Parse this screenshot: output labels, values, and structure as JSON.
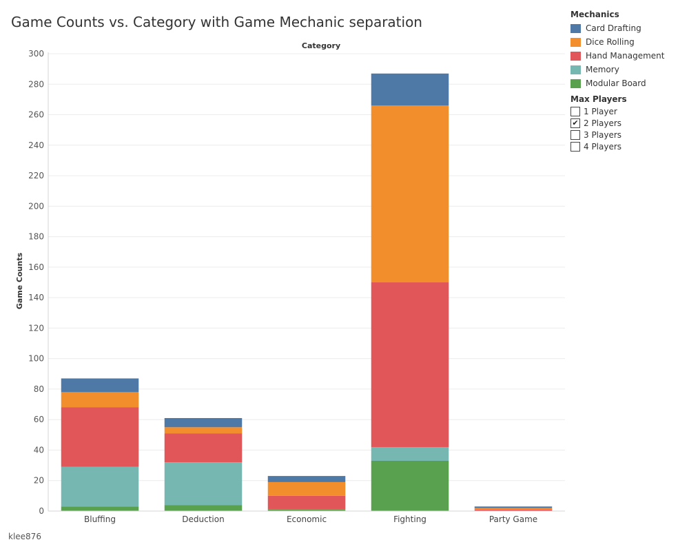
{
  "title": "Game Counts vs. Category with Game Mechanic separation",
  "credit": "klee876",
  "legend": {
    "title": "Mechanics",
    "items": [
      {
        "label": "Card Drafting",
        "color": "#4e79a7"
      },
      {
        "label": "Dice Rolling",
        "color": "#f28e2b"
      },
      {
        "label": "Hand Management",
        "color": "#e15759"
      },
      {
        "label": "Memory",
        "color": "#76b7b2"
      },
      {
        "label": "Modular Board",
        "color": "#59a14f"
      }
    ]
  },
  "filter": {
    "title": "Max Players",
    "options": [
      {
        "label": "1 Player",
        "checked": false,
        "mark": ""
      },
      {
        "label": "2 Players",
        "checked": true,
        "mark": "✔"
      },
      {
        "label": "3 Players",
        "checked": false,
        "mark": ""
      },
      {
        "label": "4 Players",
        "checked": false,
        "mark": ""
      }
    ]
  },
  "chart_data": {
    "type": "bar",
    "stacked": true,
    "xlabel": "Category",
    "ylabel": "Game Counts",
    "ylim": [
      0,
      300
    ],
    "yticks": [
      0,
      20,
      40,
      60,
      80,
      100,
      120,
      140,
      160,
      180,
      200,
      220,
      240,
      260,
      280,
      300
    ],
    "grid": true,
    "legend_position": "top-right",
    "categories": [
      "Bluffing",
      "Deduction",
      "Economic",
      "Fighting",
      "Party Game"
    ],
    "series": [
      {
        "name": "Modular Board",
        "color": "#59a14f",
        "values": [
          3,
          4,
          1,
          33,
          0
        ]
      },
      {
        "name": "Memory",
        "color": "#76b7b2",
        "values": [
          26,
          28,
          0,
          9,
          0
        ]
      },
      {
        "name": "Hand Management",
        "color": "#e15759",
        "values": [
          39,
          19,
          9,
          108,
          1
        ]
      },
      {
        "name": "Dice Rolling",
        "color": "#f28e2b",
        "values": [
          10,
          4,
          9,
          116,
          1
        ]
      },
      {
        "name": "Card Drafting",
        "color": "#4e79a7",
        "values": [
          9,
          6,
          4,
          21,
          1
        ]
      }
    ]
  }
}
